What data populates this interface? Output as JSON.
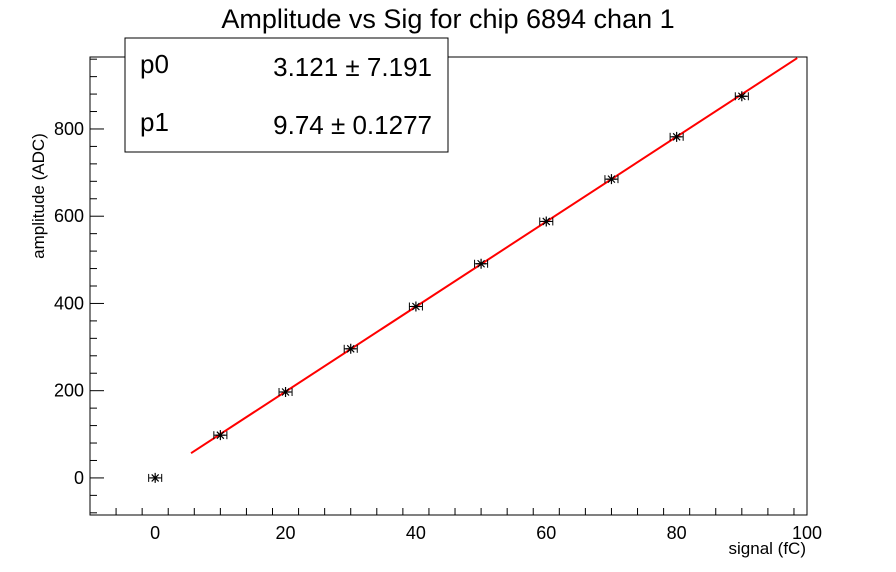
{
  "chart_data": {
    "type": "scatter",
    "title": "Amplitude vs Sig for chip 6894 chan 1",
    "xlabel": "signal (fC)",
    "ylabel": "amplitude (ADC)",
    "xlim": [
      -10,
      100
    ],
    "ylim": [
      -85,
      965
    ],
    "x_ticks": [
      0,
      20,
      40,
      60,
      80,
      100
    ],
    "y_ticks": [
      0,
      200,
      400,
      600,
      800
    ],
    "grid": false,
    "series": [
      {
        "marker": "star",
        "color": "#000000",
        "x": [
          0,
          10,
          20,
          30,
          40,
          50,
          60,
          70,
          80,
          90
        ],
        "y": [
          0,
          98,
          197,
          296,
          393,
          491,
          588,
          685,
          782,
          875
        ],
        "x_err": 1
      }
    ],
    "fit": {
      "type": "linear",
      "color": "#ff0000",
      "x_range": [
        5.5,
        98.5
      ],
      "params": [
        {
          "name": "p0",
          "value": "3.121",
          "error": "7.191",
          "v": 3.121
        },
        {
          "name": "p1",
          "value": "9.74",
          "error": "0.1277",
          "v": 9.74
        }
      ]
    },
    "stats_box_position": "top-left"
  }
}
